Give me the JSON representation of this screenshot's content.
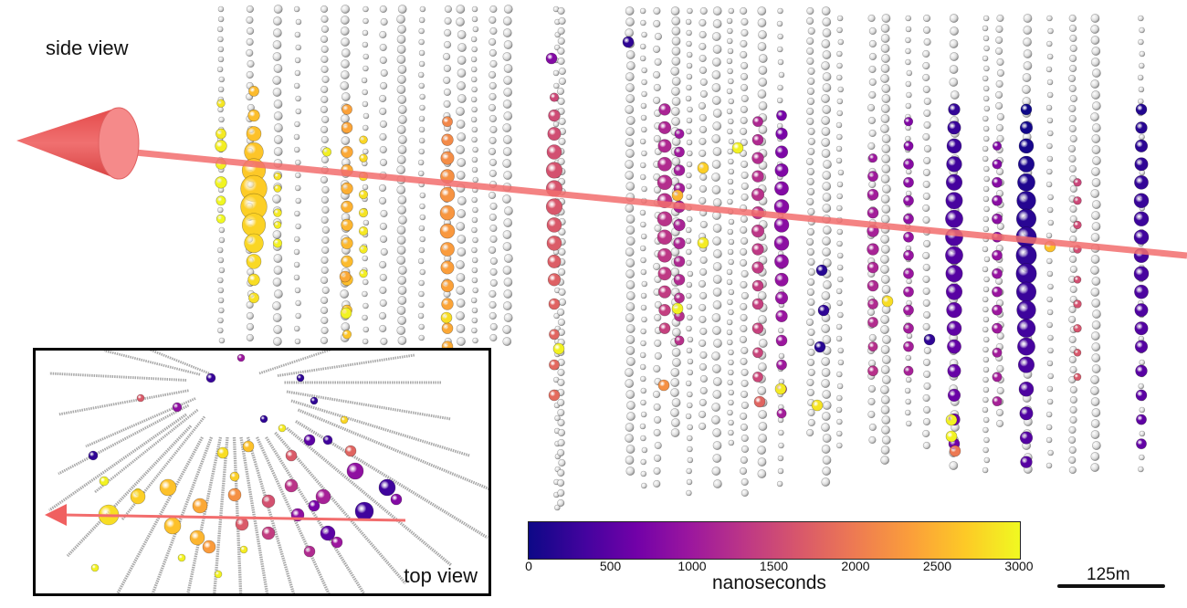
{
  "labels": {
    "side_view": "side view",
    "top_view": "top view",
    "colorbar_title": "nanoseconds",
    "scale": "125m"
  },
  "colorbar": {
    "colormap": "plasma",
    "min": 0,
    "max": 3000,
    "ticks": [
      "0",
      "500",
      "1000",
      "1500",
      "2000",
      "2500",
      "3000"
    ],
    "stops": [
      "#0d0887",
      "#46039f",
      "#7201a8",
      "#9c179e",
      "#bd3786",
      "#d8576b",
      "#ed7953",
      "#fb9f3a",
      "#fdca26",
      "#f0f921"
    ]
  },
  "colors": {
    "track": "#f26d6d",
    "cone": "#e85858",
    "unhit_dom": "#e6e6e6",
    "frame": "#000000"
  },
  "side_view": {
    "direction": "right-to-left",
    "strings": [
      {
        "t": 2950,
        "hits": [
          [
            0.17,
            0.55
          ],
          [
            0.22,
            0.7
          ],
          [
            0.24,
            0.8
          ],
          [
            0.27,
            0.7
          ],
          [
            0.3,
            0.8
          ],
          [
            0.33,
            0.65
          ],
          [
            0.36,
            0.6
          ]
        ]
      },
      {
        "t": 2700,
        "hits": [
          [
            0.15,
            0.7
          ],
          [
            0.19,
            0.8
          ],
          [
            0.22,
            1.0
          ],
          [
            0.25,
            1.3
          ],
          [
            0.28,
            1.6
          ],
          [
            0.31,
            1.8
          ],
          [
            0.34,
            1.8
          ],
          [
            0.37,
            1.6
          ],
          [
            0.4,
            1.3
          ],
          [
            0.43,
            1.0
          ],
          [
            0.46,
            0.8
          ],
          [
            0.49,
            0.7
          ]
        ]
      },
      {
        "t": 2900,
        "hits": [
          [
            0.29,
            0.5
          ],
          [
            0.31,
            0.5
          ],
          [
            0.35,
            0.55
          ],
          [
            0.37,
            0.5
          ],
          [
            0.4,
            0.6
          ]
        ]
      },
      {
        "t": 2950,
        "hits": [
          [
            0.25,
            0.6
          ]
        ]
      },
      {
        "t": 2500,
        "hits": [
          [
            0.18,
            0.7
          ],
          [
            0.21,
            0.75
          ],
          [
            0.25,
            0.8
          ],
          [
            0.28,
            0.8
          ],
          [
            0.31,
            0.8
          ],
          [
            0.34,
            0.8
          ],
          [
            0.37,
            0.8
          ],
          [
            0.4,
            0.8
          ],
          [
            0.43,
            0.8
          ],
          [
            0.46,
            0.8
          ],
          [
            0.51,
            0.7
          ],
          [
            0.55,
            0.6
          ]
        ]
      },
      {
        "t": 2850,
        "hits": [
          [
            0.23,
            0.55
          ],
          [
            0.26,
            0.55
          ],
          [
            0.29,
            0.6
          ],
          [
            0.32,
            0.6
          ],
          [
            0.35,
            0.6
          ],
          [
            0.38,
            0.6
          ],
          [
            0.41,
            0.55
          ],
          [
            0.45,
            0.55
          ]
        ]
      },
      {
        "t": 2300,
        "hits": [
          [
            0.2,
            0.7
          ],
          [
            0.23,
            0.8
          ],
          [
            0.26,
            0.9
          ],
          [
            0.29,
            0.95
          ],
          [
            0.32,
            1.0
          ],
          [
            0.35,
            1.0
          ],
          [
            0.38,
            1.0
          ],
          [
            0.41,
            0.95
          ],
          [
            0.44,
            0.9
          ],
          [
            0.47,
            0.85
          ],
          [
            0.5,
            0.8
          ],
          [
            0.54,
            0.75
          ],
          [
            0.57,
            0.75
          ],
          [
            0.62,
            0.7
          ]
        ]
      },
      {
        "t": 1700,
        "hits": [
          [
            0.16,
            0.6
          ],
          [
            0.19,
            0.8
          ],
          [
            0.22,
            0.9
          ],
          [
            0.25,
            1.0
          ],
          [
            0.28,
            1.1
          ],
          [
            0.31,
            1.1
          ],
          [
            0.34,
            1.1
          ],
          [
            0.37,
            1.0
          ],
          [
            0.4,
            1.0
          ],
          [
            0.43,
            0.9
          ],
          [
            0.46,
            0.85
          ],
          [
            0.5,
            0.75
          ],
          [
            0.55,
            0.7
          ],
          [
            0.6,
            0.7
          ],
          [
            0.65,
            0.75
          ]
        ]
      },
      {
        "t": 1300,
        "hits": [
          [
            0.18,
            0.8
          ],
          [
            0.21,
            0.85
          ],
          [
            0.24,
            0.9
          ],
          [
            0.27,
            0.95
          ],
          [
            0.3,
            1.0
          ],
          [
            0.33,
            1.0
          ],
          [
            0.36,
            1.0
          ],
          [
            0.39,
            1.0
          ],
          [
            0.42,
            0.95
          ],
          [
            0.45,
            0.9
          ],
          [
            0.48,
            0.85
          ],
          [
            0.51,
            0.8
          ],
          [
            0.54,
            0.75
          ]
        ]
      },
      {
        "t": 1150,
        "hits": [
          [
            0.22,
            0.65
          ],
          [
            0.25,
            0.7
          ],
          [
            0.28,
            0.75
          ],
          [
            0.31,
            0.75
          ],
          [
            0.34,
            0.8
          ],
          [
            0.37,
            0.8
          ],
          [
            0.4,
            0.8
          ],
          [
            0.43,
            0.75
          ],
          [
            0.46,
            0.75
          ],
          [
            0.49,
            0.7
          ],
          [
            0.52,
            0.7
          ],
          [
            0.56,
            0.65
          ]
        ]
      },
      {
        "t": 1350,
        "hits": [
          [
            0.2,
            0.7
          ],
          [
            0.23,
            0.75
          ],
          [
            0.26,
            0.8
          ],
          [
            0.29,
            0.8
          ],
          [
            0.32,
            0.85
          ],
          [
            0.35,
            0.85
          ],
          [
            0.38,
            0.85
          ],
          [
            0.41,
            0.8
          ],
          [
            0.44,
            0.8
          ],
          [
            0.47,
            0.75
          ],
          [
            0.5,
            0.75
          ],
          [
            0.54,
            0.75
          ],
          [
            0.58,
            0.7
          ],
          [
            0.62,
            0.7
          ]
        ]
      },
      {
        "t": 900,
        "hits": [
          [
            0.19,
            0.7
          ],
          [
            0.22,
            0.8
          ],
          [
            0.25,
            0.85
          ],
          [
            0.28,
            0.9
          ],
          [
            0.31,
            0.95
          ],
          [
            0.34,
            1.0
          ],
          [
            0.37,
            1.0
          ],
          [
            0.4,
            1.0
          ],
          [
            0.43,
            0.95
          ],
          [
            0.46,
            0.9
          ],
          [
            0.49,
            0.85
          ],
          [
            0.52,
            0.8
          ],
          [
            0.56,
            0.75
          ],
          [
            0.6,
            0.7
          ],
          [
            0.64,
            0.7
          ],
          [
            0.68,
            0.65
          ]
        ]
      },
      {
        "t": 1150,
        "hits": [
          [
            0.26,
            0.6
          ],
          [
            0.29,
            0.7
          ],
          [
            0.32,
            0.75
          ],
          [
            0.35,
            0.75
          ],
          [
            0.38,
            0.8
          ],
          [
            0.41,
            0.8
          ],
          [
            0.44,
            0.75
          ],
          [
            0.47,
            0.75
          ],
          [
            0.5,
            0.7
          ],
          [
            0.53,
            0.7
          ],
          [
            0.57,
            0.65
          ],
          [
            0.61,
            0.7
          ]
        ]
      },
      {
        "t": 950,
        "hits": [
          [
            0.2,
            0.6
          ],
          [
            0.24,
            0.65
          ],
          [
            0.27,
            0.7
          ],
          [
            0.3,
            0.7
          ],
          [
            0.33,
            0.7
          ],
          [
            0.36,
            0.7
          ],
          [
            0.39,
            0.7
          ],
          [
            0.42,
            0.7
          ],
          [
            0.45,
            0.7
          ],
          [
            0.48,
            0.7
          ],
          [
            0.51,
            0.7
          ],
          [
            0.54,
            0.7
          ],
          [
            0.57,
            0.7
          ],
          [
            0.61,
            0.65
          ]
        ]
      },
      {
        "t": 450,
        "hits": [
          [
            0.18,
            0.8
          ],
          [
            0.21,
            0.9
          ],
          [
            0.24,
            1.0
          ],
          [
            0.27,
            1.05
          ],
          [
            0.3,
            1.1
          ],
          [
            0.33,
            1.15
          ],
          [
            0.36,
            1.2
          ],
          [
            0.39,
            1.2
          ],
          [
            0.42,
            1.2
          ],
          [
            0.45,
            1.15
          ],
          [
            0.48,
            1.1
          ],
          [
            0.51,
            1.05
          ],
          [
            0.54,
            1.0
          ],
          [
            0.57,
            0.95
          ],
          [
            0.61,
            0.9
          ],
          [
            0.65,
            0.85
          ],
          [
            0.69,
            0.8
          ],
          [
            0.73,
            0.75
          ]
        ]
      },
      {
        "t": 950,
        "hits": [
          [
            0.24,
            0.6
          ],
          [
            0.27,
            0.65
          ],
          [
            0.3,
            0.7
          ],
          [
            0.33,
            0.7
          ],
          [
            0.36,
            0.7
          ],
          [
            0.39,
            0.7
          ],
          [
            0.42,
            0.7
          ],
          [
            0.45,
            0.7
          ],
          [
            0.48,
            0.7
          ],
          [
            0.51,
            0.7
          ],
          [
            0.54,
            0.7
          ],
          [
            0.58,
            0.65
          ],
          [
            0.62,
            0.65
          ],
          [
            0.66,
            0.65
          ]
        ]
      },
      {
        "t": 250,
        "hits": [
          [
            0.18,
            0.75
          ],
          [
            0.21,
            0.85
          ],
          [
            0.24,
            1.0
          ],
          [
            0.27,
            1.1
          ],
          [
            0.3,
            1.2
          ],
          [
            0.33,
            1.3
          ],
          [
            0.36,
            1.35
          ],
          [
            0.39,
            1.4
          ],
          [
            0.42,
            1.4
          ],
          [
            0.45,
            1.4
          ],
          [
            0.48,
            1.35
          ],
          [
            0.51,
            1.3
          ],
          [
            0.54,
            1.25
          ],
          [
            0.57,
            1.2
          ],
          [
            0.6,
            1.1
          ],
          [
            0.64,
            1.0
          ],
          [
            0.68,
            0.9
          ],
          [
            0.72,
            0.85
          ],
          [
            0.76,
            0.8
          ]
        ]
      },
      {
        "t": 1600,
        "hits": [
          [
            0.3,
            0.55
          ],
          [
            0.33,
            0.55
          ],
          [
            0.37,
            0.55
          ],
          [
            0.41,
            0.55
          ],
          [
            0.46,
            0.5
          ],
          [
            0.5,
            0.55
          ],
          [
            0.54,
            0.55
          ],
          [
            0.58,
            0.5
          ],
          [
            0.62,
            0.5
          ]
        ]
      },
      {
        "t": 350,
        "hits": [
          [
            0.18,
            0.75
          ],
          [
            0.21,
            0.8
          ],
          [
            0.24,
            0.85
          ],
          [
            0.27,
            0.9
          ],
          [
            0.3,
            0.95
          ],
          [
            0.33,
            1.0
          ],
          [
            0.36,
            1.0
          ],
          [
            0.39,
            1.0
          ],
          [
            0.42,
            1.0
          ],
          [
            0.45,
            1.0
          ],
          [
            0.48,
            0.95
          ],
          [
            0.51,
            0.9
          ],
          [
            0.54,
            0.9
          ],
          [
            0.57,
            0.85
          ],
          [
            0.61,
            0.8
          ],
          [
            0.65,
            0.75
          ],
          [
            0.69,
            0.7
          ],
          [
            0.73,
            0.7
          ]
        ]
      }
    ]
  }
}
